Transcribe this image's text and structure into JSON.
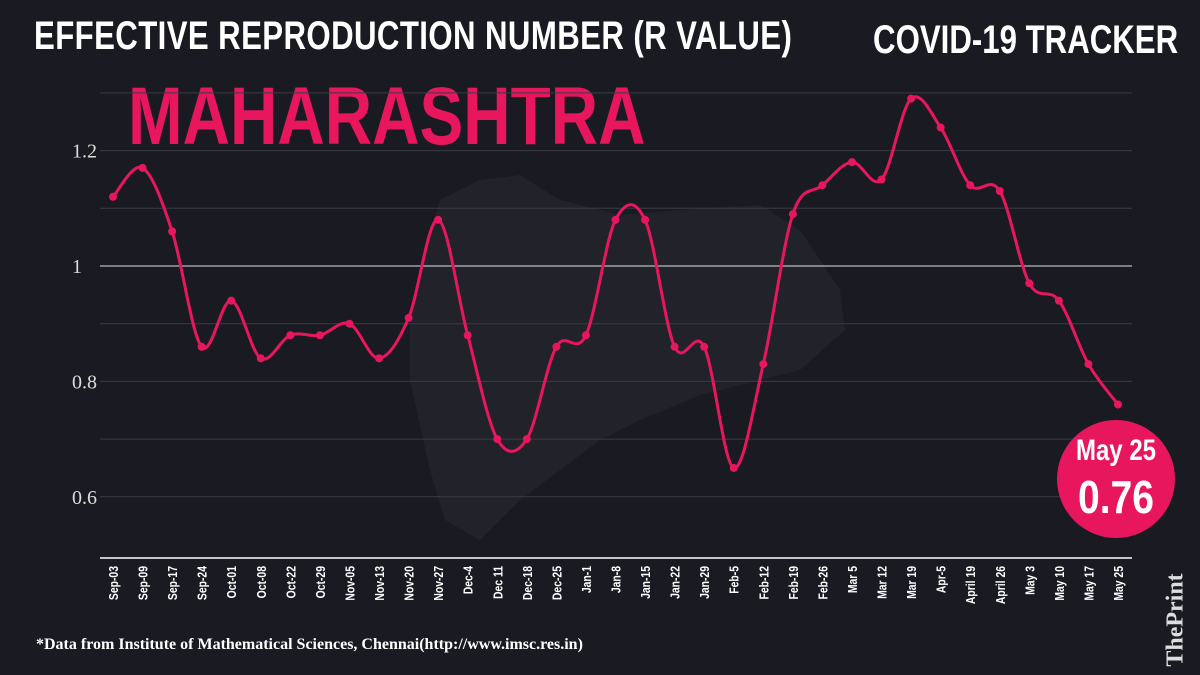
{
  "header": {
    "title": "EFFECTIVE REPRODUCTION NUMBER (R VALUE)",
    "tracker": "COVID-19 TRACKER",
    "state": "MAHARASHTRA"
  },
  "badge": {
    "date": "May 25",
    "value": "0.76"
  },
  "footer": {
    "source": "*Data from Institute of Mathematical Sciences, Chennai(http://www.imsc.res.in)",
    "brand": "ThePrint"
  },
  "colors": {
    "line": "#e8175d",
    "background": "#1a1b22",
    "grid": "#3a3b44"
  },
  "chart_data": {
    "type": "line",
    "title": "EFFECTIVE REPRODUCTION NUMBER (R VALUE)",
    "categories": [
      "Sep-03",
      "Sep-09",
      "Sep-17",
      "Sep-24",
      "Oct-01",
      "Oct-08",
      "Oct-22",
      "Oct-29",
      "Nov-05",
      "Nov-13",
      "Nov-20",
      "Nov-27",
      "Dec-4",
      "Dec 11",
      "Dec-18",
      "Dec-25",
      "Jan-1",
      "Jan-8",
      "Jan-15",
      "Jan-22",
      "Jan-29",
      "Feb-5",
      "Feb-12",
      "Feb-19",
      "Feb-26",
      "Mar 5",
      "Mar 12",
      "Mar 19",
      "Apr-5",
      "April 19",
      "April 26",
      "May 3",
      "May 10",
      "May 17",
      "May 25"
    ],
    "values": [
      1.12,
      1.17,
      1.06,
      0.86,
      0.94,
      0.84,
      0.88,
      0.88,
      0.9,
      0.84,
      0.91,
      1.08,
      0.88,
      0.7,
      0.7,
      0.86,
      0.88,
      1.08,
      1.08,
      0.86,
      0.86,
      0.65,
      0.83,
      1.09,
      1.14,
      1.18,
      1.15,
      1.29,
      1.24,
      1.14,
      1.13,
      0.97,
      0.94,
      0.83,
      0.76
    ],
    "yticks": [
      {
        "v": 0.6,
        "label": "0.6"
      },
      {
        "v": 0.8,
        "label": "0.8"
      },
      {
        "v": 1.0,
        "label": "1"
      },
      {
        "v": 1.2,
        "label": "1.2"
      }
    ],
    "ylim": [
      0.5,
      1.35
    ],
    "grid": true,
    "xlabel": "",
    "ylabel": ""
  }
}
